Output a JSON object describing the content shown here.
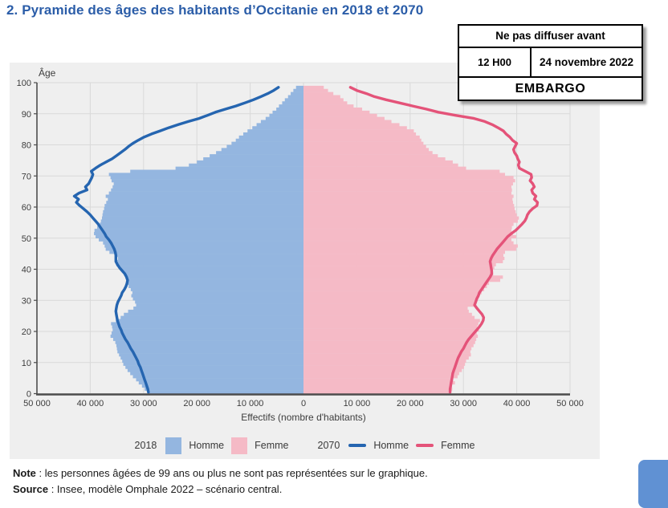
{
  "page": {
    "title": "2. Pyramide des âges des habitants d’Occitanie en 2018 et 2070"
  },
  "embargo": {
    "header": "Ne pas diffuser avant",
    "time": "12 H00",
    "date": "24 novembre 2022",
    "stamp": "EMBARGO"
  },
  "notes": [
    {
      "label": "Note",
      "text": " : les personnes âgées de 99 ans ou plus ne sont pas représentées sur le graphique."
    },
    {
      "label": "Source",
      "text": " : Insee, modèle Omphale 2022 – scénario central."
    }
  ],
  "legend": {
    "groups": [
      {
        "year": "2018",
        "items": [
          {
            "label": "Homme"
          },
          {
            "label": "Femme"
          }
        ]
      },
      {
        "year": "2070",
        "items": [
          {
            "label": "Homme"
          },
          {
            "label": "Femme"
          }
        ]
      }
    ]
  },
  "colors": {
    "title_blue": "#2b5da8",
    "panel_bg": "#efefef",
    "gridline": "#d9d9d9",
    "axis": "#4d4d4d",
    "bar_homme_2018": "#94b6e0",
    "bar_femme_2018": "#f5bac6",
    "line_homme_2070": "#2565b0",
    "line_femme_2070": "#e45379",
    "corner_widget": "#6091d3"
  },
  "chart_data": {
    "type": "bar",
    "subtype": "population-pyramid with overlay lines",
    "title": "Pyramide des âges des habitants d’Occitanie en 2018 et 2070",
    "xlabel": "Effectifs (nombre d'habitants)",
    "ylabel": "Âge",
    "grid": true,
    "legend_position": "bottom",
    "xlim": [
      -50000,
      50000
    ],
    "ylim": [
      0,
      100
    ],
    "x_tick_values": [
      -50000,
      -40000,
      -30000,
      -20000,
      -10000,
      0,
      10000,
      20000,
      30000,
      40000,
      50000
    ],
    "x_ticks": [
      "50 000",
      "40 000",
      "30 000",
      "20 000",
      "10 000",
      "0",
      "10 000",
      "20 000",
      "30 000",
      "40 000",
      "50 000"
    ],
    "y_ticks": [
      0,
      10,
      20,
      30,
      40,
      50,
      60,
      70,
      80,
      90,
      100
    ],
    "ages": {
      "start": 0,
      "end": 98,
      "step": 1
    },
    "series": [
      {
        "name": "Homme 2018",
        "type": "bar",
        "side": "left",
        "color": "#94b6e0",
        "values": [
          29300,
          29800,
          30300,
          30900,
          31400,
          32000,
          32500,
          33000,
          33400,
          33800,
          34000,
          34300,
          34600,
          34900,
          35000,
          35100,
          35300,
          35700,
          36200,
          36000,
          35800,
          35900,
          36100,
          35200,
          34300,
          33700,
          32900,
          31900,
          31400,
          31600,
          32000,
          32300,
          32100,
          32400,
          32800,
          33200,
          33100,
          33400,
          33700,
          34100,
          34600,
          35100,
          35300,
          34800,
          35300,
          36400,
          37100,
          37300,
          37600,
          38400,
          39000,
          39300,
          39200,
          38700,
          38200,
          38000,
          37800,
          37700,
          37600,
          37400,
          37300,
          37000,
          36700,
          37100,
          36500,
          36100,
          35800,
          35600,
          36000,
          36200,
          36500,
          32500,
          24000,
          21500,
          20000,
          18800,
          17600,
          16400,
          15400,
          14400,
          13500,
          12700,
          12100,
          11300,
          10500,
          9600,
          8800,
          8000,
          7100,
          6400,
          5800,
          5100,
          4600,
          4000,
          3500,
          2900,
          2400,
          1900,
          1400
        ]
      },
      {
        "name": "Femme 2018",
        "type": "bar",
        "side": "right",
        "color": "#f5bac6",
        "values": [
          27700,
          27900,
          27800,
          28400,
          28100,
          28900,
          29200,
          29700,
          30100,
          30300,
          30500,
          31000,
          31400,
          31300,
          31500,
          31900,
          32200,
          32400,
          32700,
          32500,
          32900,
          32600,
          32800,
          33100,
          32100,
          31600,
          31000,
          30800,
          32400,
          32200,
          32700,
          33000,
          33400,
          33900,
          34400,
          34800,
          36900,
          37400,
          35600,
          35300,
          35800,
          36100,
          37400,
          37700,
          37500,
          37800,
          39900,
          40200,
          39400,
          39000,
          39900,
          39300,
          39000,
          39100,
          39400,
          40200,
          40400,
          40000,
          39800,
          39600,
          39500,
          39300,
          39200,
          39400,
          39000,
          39100,
          39000,
          39300,
          39700,
          39400,
          37800,
          36800,
          30500,
          29000,
          28000,
          26600,
          25200,
          24200,
          23500,
          23000,
          22500,
          22100,
          21800,
          21100,
          20700,
          19400,
          18000,
          16500,
          15200,
          13800,
          12400,
          11000,
          9400,
          8200,
          7500,
          6900,
          5600,
          4600,
          3800
        ]
      },
      {
        "name": "Homme 2070",
        "type": "line",
        "side": "left",
        "color": "#2565b0",
        "values": [
          29100,
          29200,
          29400,
          29600,
          29800,
          30000,
          30200,
          30400,
          30600,
          30900,
          31100,
          31400,
          31700,
          32000,
          32400,
          32700,
          33000,
          33400,
          33700,
          34000,
          34200,
          34500,
          34700,
          34900,
          35000,
          35100,
          35200,
          35100,
          35000,
          34800,
          34500,
          34200,
          34000,
          33600,
          33300,
          33100,
          33000,
          33200,
          33500,
          34000,
          34500,
          34900,
          35200,
          35200,
          35200,
          35300,
          35500,
          35800,
          36100,
          36500,
          37000,
          37300,
          37700,
          38100,
          38500,
          39000,
          39500,
          40000,
          40600,
          41300,
          42000,
          42600,
          42200,
          43000,
          42100,
          40600,
          40900,
          40300,
          40000,
          39700,
          39500,
          39800,
          39000,
          38100,
          37000,
          35900,
          35100,
          34300,
          33500,
          32800,
          32000,
          31000,
          29900,
          28500,
          26900,
          25300,
          23500,
          21600,
          19600,
          18000,
          16500,
          14600,
          12700,
          11000,
          9400,
          8000,
          6700,
          5600,
          4700
        ]
      },
      {
        "name": "Femme 2070",
        "type": "line",
        "side": "right",
        "color": "#e45379",
        "values": [
          27500,
          27500,
          27600,
          27700,
          27800,
          27900,
          28000,
          28200,
          28400,
          28600,
          28800,
          29000,
          29300,
          29600,
          30000,
          30300,
          30600,
          31000,
          31500,
          32000,
          32500,
          33000,
          33400,
          33700,
          33800,
          33500,
          33000,
          32500,
          32100,
          32300,
          32500,
          32800,
          33000,
          33400,
          33800,
          34200,
          34600,
          35000,
          35300,
          35300,
          35200,
          35100,
          35000,
          35200,
          35500,
          35900,
          36300,
          36800,
          37300,
          37800,
          38300,
          39000,
          39800,
          40400,
          41000,
          41500,
          41800,
          42000,
          42400,
          43000,
          43800,
          43900,
          43300,
          43600,
          43000,
          42800,
          43300,
          43000,
          42500,
          42800,
          42700,
          41600,
          40500,
          40300,
          40500,
          40200,
          40000,
          39600,
          39400,
          39700,
          40000,
          39200,
          38700,
          38000,
          37500,
          36500,
          35400,
          34000,
          32000,
          28500,
          25300,
          23000,
          20500,
          18000,
          15500,
          13300,
          11800,
          10000,
          8800
        ]
      }
    ]
  }
}
